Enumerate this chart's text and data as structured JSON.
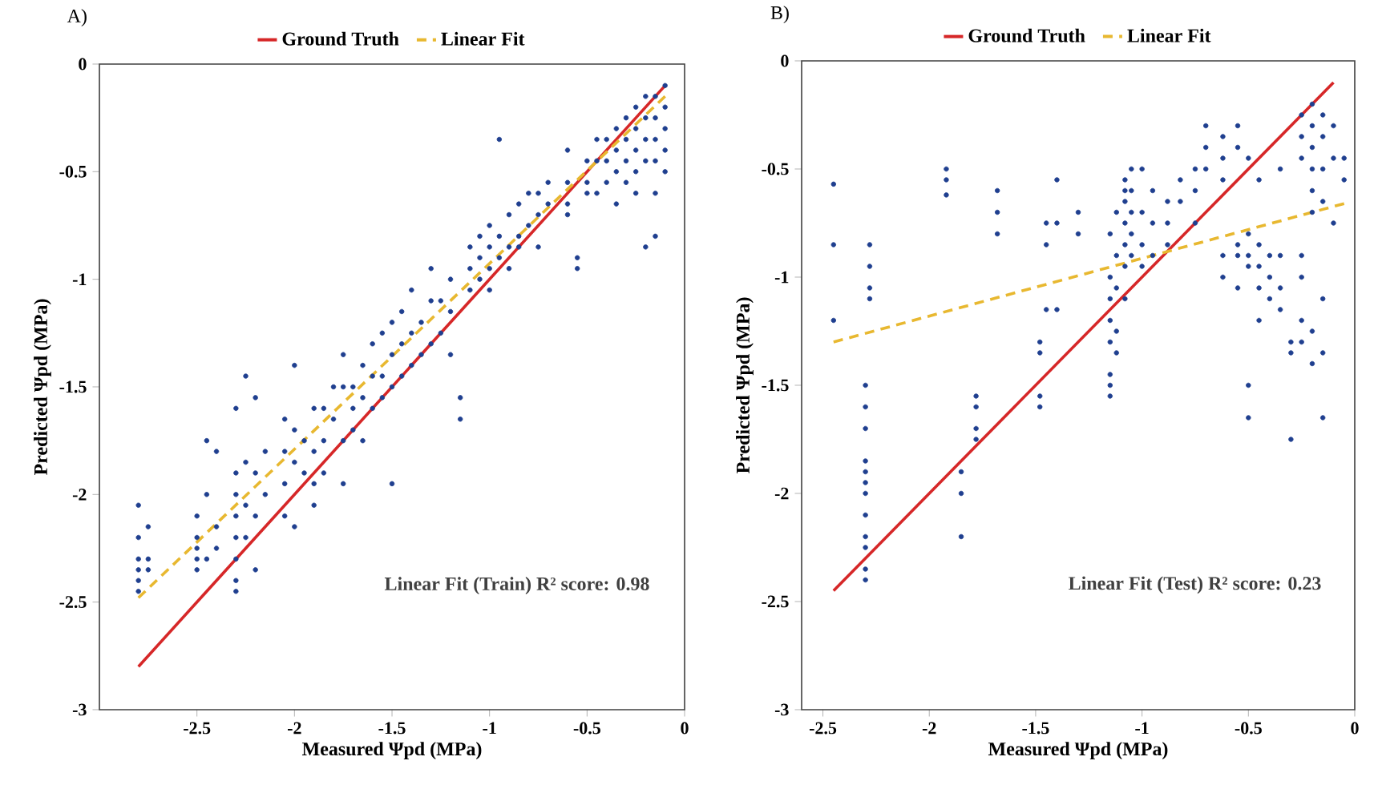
{
  "chart_data": [
    {
      "type": "scatter",
      "title": "A)",
      "xlabel": "Measured Ψpd (MPa)",
      "ylabel": "Predicted Ψpd (MPa)",
      "xlim": [
        -3.0,
        0
      ],
      "ylim": [
        -3,
        0
      ],
      "xticks": [
        -2.5,
        -2,
        -1.5,
        -1,
        -0.5,
        0
      ],
      "yticks": [
        -3,
        -2.5,
        -2,
        -1.5,
        -1,
        -0.5,
        0
      ],
      "legend": "top",
      "annotations": [
        "Linear Fit (Train) R² score: 0.98"
      ],
      "series": [
        {
          "name": "Ground Truth",
          "type": "line",
          "line_style": "solid",
          "color": "#d62728",
          "x": [
            -2.8,
            -0.1
          ],
          "values": [
            -2.8,
            -0.1
          ]
        },
        {
          "name": "Linear Fit",
          "type": "line",
          "line_style": "dashed",
          "color": "#e8b830",
          "x": [
            -2.8,
            -0.1
          ],
          "values": [
            -2.48,
            -0.15
          ]
        },
        {
          "type": "scatter",
          "marker": "circle",
          "color": "#1f3f8f",
          "x": [
            -2.8,
            -2.8,
            -2.8,
            -2.8,
            -2.8,
            -2.8,
            -2.75,
            -2.75,
            -2.75,
            -2.5,
            -2.5,
            -2.5,
            -2.5,
            -2.5,
            -2.45,
            -2.45,
            -2.45,
            -2.4,
            -2.4,
            -2.4,
            -2.3,
            -2.3,
            -2.3,
            -2.3,
            -2.3,
            -2.3,
            -2.3,
            -2.3,
            -2.25,
            -2.25,
            -2.25,
            -2.25,
            -2.2,
            -2.2,
            -2.2,
            -2.2,
            -2.15,
            -2.15,
            -2.05,
            -2.05,
            -2.05,
            -2.05,
            -2.0,
            -2.0,
            -2.0,
            -2.0,
            -1.95,
            -1.95,
            -1.9,
            -1.9,
            -1.9,
            -1.9,
            -1.85,
            -1.85,
            -1.85,
            -1.8,
            -1.8,
            -1.75,
            -1.75,
            -1.75,
            -1.75,
            -1.7,
            -1.7,
            -1.7,
            -1.65,
            -1.65,
            -1.65,
            -1.6,
            -1.6,
            -1.6,
            -1.55,
            -1.55,
            -1.55,
            -1.5,
            -1.5,
            -1.5,
            -1.5,
            -1.45,
            -1.45,
            -1.45,
            -1.4,
            -1.4,
            -1.4,
            -1.35,
            -1.35,
            -1.3,
            -1.3,
            -1.3,
            -1.25,
            -1.25,
            -1.2,
            -1.2,
            -1.2,
            -1.15,
            -1.15,
            -1.1,
            -1.1,
            -1.1,
            -1.05,
            -1.05,
            -1.05,
            -1.0,
            -1.0,
            -1.0,
            -1.0,
            -0.95,
            -0.95,
            -0.95,
            -0.9,
            -0.9,
            -0.9,
            -0.85,
            -0.85,
            -0.85,
            -0.8,
            -0.8,
            -0.75,
            -0.75,
            -0.75,
            -0.7,
            -0.7,
            -0.6,
            -0.6,
            -0.6,
            -0.6,
            -0.55,
            -0.55,
            -0.5,
            -0.5,
            -0.5,
            -0.45,
            -0.45,
            -0.45,
            -0.4,
            -0.4,
            -0.4,
            -0.35,
            -0.35,
            -0.35,
            -0.35,
            -0.3,
            -0.3,
            -0.3,
            -0.3,
            -0.25,
            -0.25,
            -0.25,
            -0.25,
            -0.25,
            -0.2,
            -0.2,
            -0.2,
            -0.2,
            -0.2,
            -0.15,
            -0.15,
            -0.15,
            -0.15,
            -0.15,
            -0.15,
            -0.1,
            -0.1,
            -0.1,
            -0.1,
            -0.1
          ],
          "values": [
            -2.05,
            -2.2,
            -2.3,
            -2.35,
            -2.4,
            -2.45,
            -2.15,
            -2.3,
            -2.35,
            -2.1,
            -2.2,
            -2.25,
            -2.3,
            -2.35,
            -1.75,
            -2.0,
            -2.3,
            -1.8,
            -2.15,
            -2.25,
            -1.6,
            -1.9,
            -2.0,
            -2.1,
            -2.2,
            -2.3,
            -2.4,
            -2.45,
            -1.45,
            -1.85,
            -2.05,
            -2.2,
            -1.55,
            -1.9,
            -2.1,
            -2.35,
            -1.8,
            -2.0,
            -1.65,
            -1.8,
            -1.95,
            -2.1,
            -1.4,
            -1.7,
            -1.85,
            -2.15,
            -1.75,
            -1.9,
            -1.6,
            -1.8,
            -1.95,
            -2.05,
            -1.6,
            -1.75,
            -1.9,
            -1.5,
            -1.65,
            -1.35,
            -1.5,
            -1.75,
            -1.95,
            -1.5,
            -1.6,
            -1.7,
            -1.4,
            -1.55,
            -1.75,
            -1.3,
            -1.45,
            -1.6,
            -1.25,
            -1.45,
            -1.55,
            -1.2,
            -1.35,
            -1.5,
            -1.95,
            -1.15,
            -1.3,
            -1.45,
            -1.05,
            -1.25,
            -1.4,
            -1.2,
            -1.35,
            -0.95,
            -1.1,
            -1.3,
            -1.1,
            -1.25,
            -1.0,
            -1.15,
            -1.35,
            -1.55,
            -1.65,
            -0.85,
            -0.95,
            -1.05,
            -0.8,
            -0.9,
            -1.0,
            -0.75,
            -0.85,
            -0.95,
            -1.05,
            -0.35,
            -0.8,
            -0.9,
            -0.7,
            -0.85,
            -0.95,
            -0.65,
            -0.8,
            -0.85,
            -0.6,
            -0.75,
            -0.6,
            -0.7,
            -0.85,
            -0.55,
            -0.65,
            -0.4,
            -0.55,
            -0.65,
            -0.7,
            -0.9,
            -0.95,
            -0.45,
            -0.55,
            -0.6,
            -0.35,
            -0.45,
            -0.6,
            -0.35,
            -0.45,
            -0.55,
            -0.3,
            -0.4,
            -0.5,
            -0.65,
            -0.25,
            -0.35,
            -0.45,
            -0.55,
            -0.2,
            -0.3,
            -0.4,
            -0.5,
            -0.6,
            -0.15,
            -0.25,
            -0.35,
            -0.45,
            -0.85,
            -0.15,
            -0.25,
            -0.35,
            -0.45,
            -0.6,
            -0.8,
            -0.1,
            -0.2,
            -0.3,
            -0.4,
            -0.5
          ]
        }
      ]
    },
    {
      "type": "scatter",
      "title": "B)",
      "xlabel": "Measured Ψpd (MPa)",
      "ylabel": "Predicted Ψpd (MPa)",
      "xlim": [
        -2.6,
        0
      ],
      "ylim": [
        -3,
        0
      ],
      "xticks": [
        -2.5,
        -2,
        -1.5,
        -1,
        -0.5,
        0
      ],
      "yticks": [
        -3,
        -2.5,
        -2,
        -1.5,
        -1,
        -0.5,
        0
      ],
      "legend": "top",
      "annotations": [
        "Linear Fit (Test) R² score: 0.23"
      ],
      "series": [
        {
          "name": "Ground Truth",
          "type": "line",
          "line_style": "solid",
          "color": "#d62728",
          "x": [
            -2.45,
            -0.1
          ],
          "values": [
            -2.45,
            -0.1
          ]
        },
        {
          "name": "Linear Fit",
          "type": "line",
          "line_style": "dashed",
          "color": "#e8b830",
          "x": [
            -2.45,
            -0.05
          ],
          "values": [
            -1.3,
            -0.66
          ]
        },
        {
          "type": "scatter",
          "marker": "circle",
          "color": "#1f3f8f",
          "x": [
            -2.45,
            -2.45,
            -2.45,
            -2.3,
            -2.3,
            -2.3,
            -2.3,
            -2.3,
            -2.3,
            -2.3,
            -2.3,
            -2.3,
            -2.3,
            -2.3,
            -2.3,
            -2.28,
            -2.28,
            -2.28,
            -2.28,
            -1.92,
            -1.92,
            -1.92,
            -1.85,
            -1.85,
            -1.85,
            -1.78,
            -1.78,
            -1.78,
            -1.78,
            -1.68,
            -1.68,
            -1.68,
            -1.48,
            -1.48,
            -1.48,
            -1.48,
            -1.45,
            -1.45,
            -1.45,
            -1.4,
            -1.4,
            -1.4,
            -1.3,
            -1.3,
            -1.15,
            -1.15,
            -1.15,
            -1.15,
            -1.15,
            -1.15,
            -1.15,
            -1.15,
            -1.12,
            -1.12,
            -1.12,
            -1.12,
            -1.12,
            -1.08,
            -1.08,
            -1.08,
            -1.08,
            -1.08,
            -1.08,
            -1.08,
            -1.05,
            -1.05,
            -1.05,
            -1.05,
            -1.05,
            -1.0,
            -1.0,
            -1.0,
            -1.0,
            -0.95,
            -0.95,
            -0.95,
            -0.88,
            -0.88,
            -0.88,
            -0.82,
            -0.82,
            -0.75,
            -0.75,
            -0.75,
            -0.7,
            -0.7,
            -0.7,
            -0.62,
            -0.62,
            -0.62,
            -0.62,
            -0.62,
            -0.55,
            -0.55,
            -0.55,
            -0.55,
            -0.55,
            -0.5,
            -0.5,
            -0.5,
            -0.5,
            -0.5,
            -0.5,
            -0.45,
            -0.45,
            -0.45,
            -0.45,
            -0.45,
            -0.4,
            -0.4,
            -0.4,
            -0.35,
            -0.35,
            -0.35,
            -0.35,
            -0.3,
            -0.3,
            -0.3,
            -0.25,
            -0.25,
            -0.25,
            -0.25,
            -0.25,
            -0.25,
            -0.25,
            -0.2,
            -0.2,
            -0.2,
            -0.2,
            -0.2,
            -0.2,
            -0.2,
            -0.2,
            -0.15,
            -0.15,
            -0.15,
            -0.15,
            -0.15,
            -0.15,
            -0.15,
            -0.1,
            -0.1,
            -0.1,
            -0.05,
            -0.05
          ],
          "values": [
            -0.57,
            -0.85,
            -1.2,
            -1.5,
            -1.6,
            -1.7,
            -1.85,
            -1.9,
            -1.95,
            -2.0,
            -2.1,
            -2.2,
            -2.25,
            -2.35,
            -2.4,
            -0.85,
            -0.95,
            -1.05,
            -1.1,
            -0.5,
            -0.55,
            -0.62,
            -1.9,
            -2.0,
            -2.2,
            -1.55,
            -1.6,
            -1.7,
            -1.75,
            -0.6,
            -0.7,
            -0.8,
            -1.3,
            -1.35,
            -1.55,
            -1.6,
            -0.75,
            -0.85,
            -1.15,
            -0.55,
            -0.75,
            -1.15,
            -0.7,
            -0.8,
            -0.8,
            -1.0,
            -1.1,
            -1.2,
            -1.3,
            -1.45,
            -1.5,
            -1.55,
            -0.7,
            -0.9,
            -1.05,
            -1.25,
            -1.35,
            -0.55,
            -0.6,
            -0.65,
            -0.75,
            -0.85,
            -0.95,
            -1.1,
            -0.5,
            -0.6,
            -0.7,
            -0.8,
            -0.9,
            -0.5,
            -0.7,
            -0.85,
            -0.95,
            -0.6,
            -0.75,
            -0.9,
            -0.65,
            -0.75,
            -0.85,
            -0.55,
            -0.65,
            -0.5,
            -0.6,
            -0.75,
            -0.3,
            -0.4,
            -0.5,
            -0.35,
            -0.45,
            -0.55,
            -0.9,
            -1.0,
            -0.3,
            -0.4,
            -0.85,
            -0.9,
            -1.05,
            -0.45,
            -0.8,
            -0.9,
            -0.95,
            -1.5,
            -1.65,
            -0.55,
            -0.85,
            -0.95,
            -1.05,
            -1.2,
            -0.9,
            -1.0,
            -1.1,
            -0.5,
            -0.9,
            -1.05,
            -1.15,
            -1.3,
            -1.35,
            -1.75,
            -0.25,
            -0.35,
            -0.45,
            -0.9,
            -1.0,
            -1.2,
            -1.3,
            -0.2,
            -0.3,
            -0.4,
            -0.5,
            -0.6,
            -0.7,
            -1.25,
            -1.4,
            -0.25,
            -0.35,
            -0.5,
            -0.65,
            -1.1,
            -1.35,
            -1.65,
            -0.3,
            -0.45,
            -0.75,
            -0.45,
            -0.55
          ]
        }
      ]
    }
  ]
}
